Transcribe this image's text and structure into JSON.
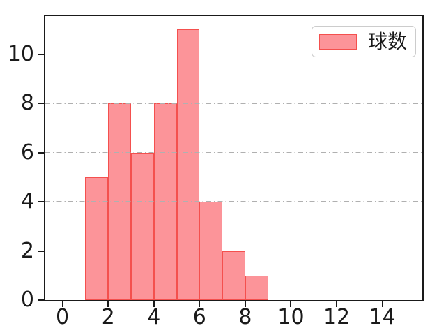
{
  "figure": {
    "background": "#ffffff"
  },
  "legend": {
    "position": "upper-right",
    "items": [
      {
        "label": "球数",
        "swatch_fill": "#fc9499",
        "swatch_edge": "#f4504e"
      }
    ]
  },
  "chart_data": {
    "type": "bar",
    "subtype": "histogram",
    "title": "",
    "xlabel": "",
    "ylabel": "",
    "series": [
      {
        "name": "球数",
        "bin_edges": [
          1,
          2,
          3,
          4,
          5,
          6,
          7,
          8,
          9
        ],
        "values": [
          5,
          8,
          6,
          8,
          11,
          4,
          2,
          1
        ]
      }
    ],
    "xlim": [
      -0.75,
      15.75
    ],
    "ylim": [
      0,
      11.55
    ],
    "xticks": {
      "values": [
        0,
        2,
        4,
        6,
        8,
        10,
        12,
        14
      ],
      "labels": [
        "0",
        "2",
        "4",
        "6",
        "8",
        "10",
        "12",
        "14"
      ]
    },
    "yticks": {
      "values": [
        0,
        2,
        4,
        6,
        8,
        10
      ],
      "labels": [
        "0",
        "2",
        "4",
        "6",
        "8",
        "10"
      ]
    },
    "grid": {
      "axis": "y",
      "style": "dash-dot",
      "color": "#b0b0b0",
      "above_bars": true
    },
    "legend_position": "upper right",
    "colors": {
      "bar_fill": "#fc9499",
      "bar_edge": "#f4504e",
      "spine": "#1a1a1a",
      "tick_label": "#1a1a1a",
      "grid": "#b0b0b0"
    }
  }
}
